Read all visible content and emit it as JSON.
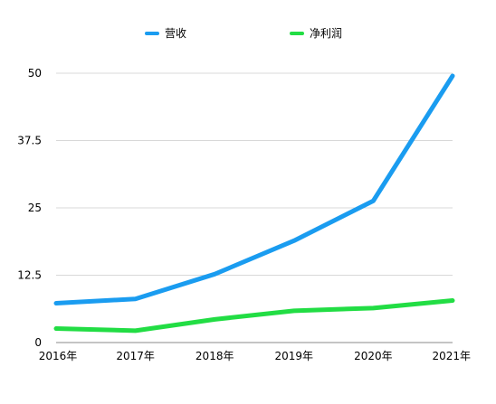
{
  "chart_data": {
    "type": "line",
    "categories": [
      "2016年",
      "2017年",
      "2018年",
      "2019年",
      "2020年",
      "2021年"
    ],
    "series": [
      {
        "name": "营收",
        "color": "#1a9cf0",
        "values": [
          7.3,
          8.1,
          12.7,
          18.9,
          26.3,
          49.5
        ]
      },
      {
        "name": "净利润",
        "color": "#22dd44",
        "values": [
          2.6,
          2.2,
          4.3,
          5.9,
          6.4,
          7.8
        ]
      }
    ],
    "y_ticks": [
      0,
      12.5,
      25,
      37.5,
      50
    ],
    "y_tick_labels": [
      "0",
      "12.5",
      "25",
      "37.5",
      "50"
    ],
    "ylim": [
      0,
      50
    ],
    "grid": true,
    "legend_position": "top-center"
  }
}
